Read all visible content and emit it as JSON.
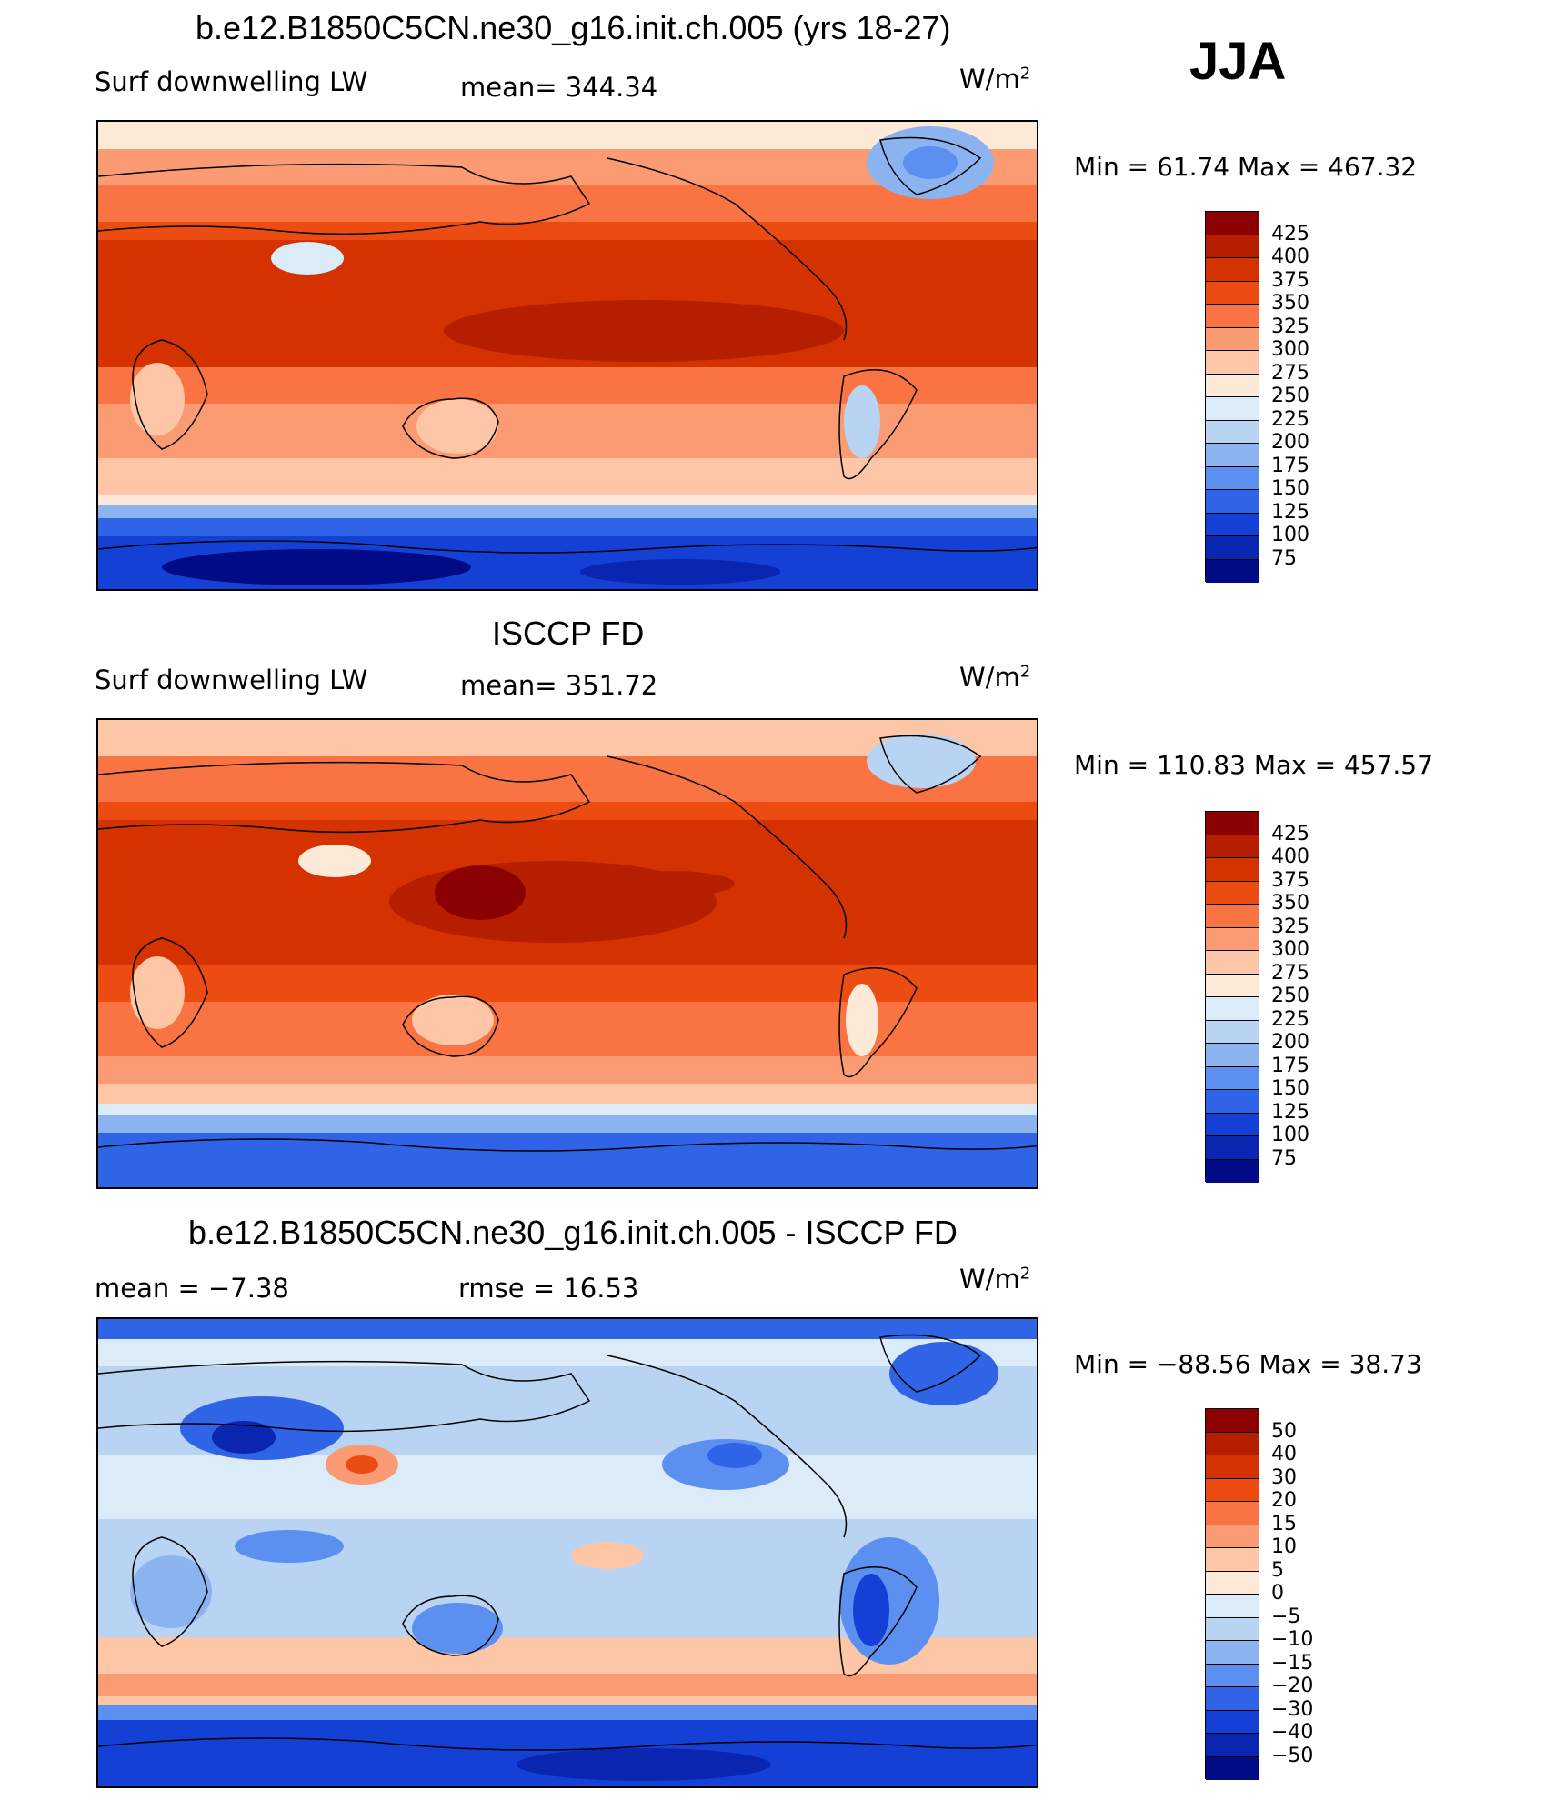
{
  "season": "JJA",
  "panels": [
    {
      "title": "b.e12.B1850C5CN.ne30_g16.init.ch.005 (yrs 18-27)",
      "left_label": "Surf downwelling LW",
      "mid_label": "mean= 344.34",
      "units": "W/m",
      "units_sup": "2",
      "minmax": "Min =   61.74 Max = 467.32",
      "map_alt": "",
      "colorbar": {
        "colors": [
          "#8b0000",
          "#b51f00",
          "#d43200",
          "#ec4c12",
          "#fa7342",
          "#fb9b74",
          "#fdc6a6",
          "#fde9d8",
          "#dcebf8",
          "#b9d3f3",
          "#8ab3f0",
          "#5b8ff0",
          "#2f64e6",
          "#1540d6",
          "#0a25b0",
          "#000b85"
        ],
        "ticks": [
          "425",
          "400",
          "375",
          "350",
          "325",
          "300",
          "275",
          "250",
          "225",
          "200",
          "175",
          "150",
          "125",
          "100",
          "75"
        ]
      }
    },
    {
      "title": "ISCCP FD",
      "left_label": "Surf downwelling LW",
      "mid_label": "mean= 351.72",
      "units": "W/m",
      "units_sup": "2",
      "minmax": "Min = 110.83 Max = 457.57",
      "map_alt": "",
      "colorbar": {
        "colors": [
          "#8b0000",
          "#b51f00",
          "#d43200",
          "#ec4c12",
          "#fa7342",
          "#fb9b74",
          "#fdc6a6",
          "#fde9d8",
          "#dcebf8",
          "#b9d3f3",
          "#8ab3f0",
          "#5b8ff0",
          "#2f64e6",
          "#1540d6",
          "#0a25b0",
          "#000b85"
        ],
        "ticks": [
          "425",
          "400",
          "375",
          "350",
          "325",
          "300",
          "275",
          "250",
          "225",
          "200",
          "175",
          "150",
          "125",
          "100",
          "75"
        ]
      }
    },
    {
      "title": "b.e12.B1850C5CN.ne30_g16.init.ch.005 - ISCCP FD",
      "left_label": "mean =   −7.38",
      "mid_label": "rmse =   16.53",
      "units": "W/m",
      "units_sup": "2",
      "minmax": "Min = −88.56 Max =   38.73",
      "map_alt": "",
      "colorbar": {
        "colors": [
          "#8b0000",
          "#b51f00",
          "#d43200",
          "#ec4c12",
          "#fa7342",
          "#fb9b74",
          "#fdc6a6",
          "#fde9d8",
          "#dcebf8",
          "#b9d3f3",
          "#8ab3f0",
          "#5b8ff0",
          "#2f64e6",
          "#1540d6",
          "#0a25b0",
          "#000b85"
        ],
        "ticks": [
          "50",
          "40",
          "30",
          "20",
          "15",
          "10",
          "5",
          "0",
          "−5",
          "−10",
          "−15",
          "−20",
          "−30",
          "−40",
          "−50"
        ]
      }
    }
  ]
}
